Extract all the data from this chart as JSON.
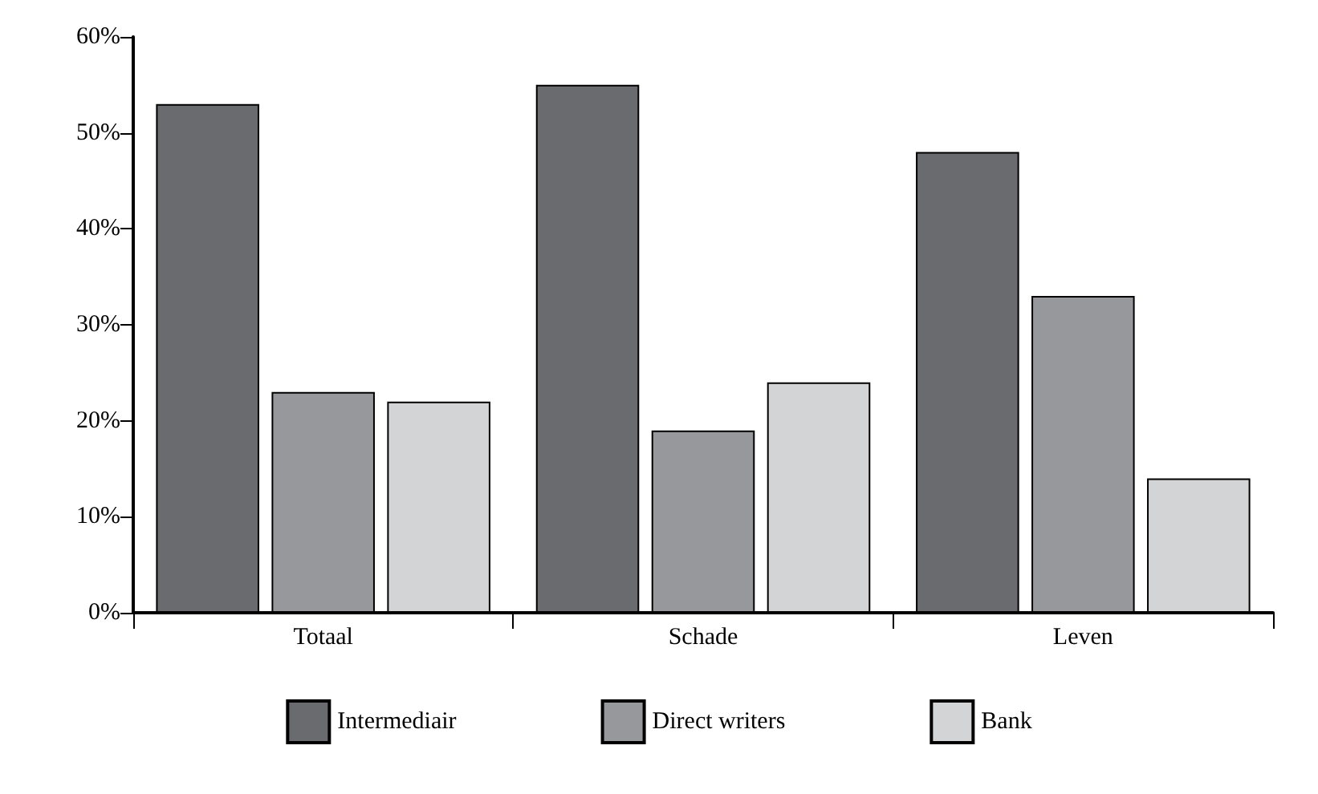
{
  "chart_data": {
    "type": "bar",
    "categories": [
      "Totaal",
      "Schade",
      "Leven"
    ],
    "series": [
      {
        "name": "Intermediair",
        "color": "#6a6b6f",
        "values": [
          53,
          55,
          48
        ]
      },
      {
        "name": "Direct writers",
        "color": "#97989c",
        "values": [
          23,
          19,
          33
        ]
      },
      {
        "name": "Bank",
        "color": "#d3d4d6",
        "values": [
          22,
          24,
          14
        ]
      }
    ],
    "ylim": [
      0,
      60
    ],
    "yticks": [
      {
        "value": 0,
        "label": "0%"
      },
      {
        "value": 10,
        "label": "10%"
      },
      {
        "value": 20,
        "label": "20%"
      },
      {
        "value": 30,
        "label": "30%"
      },
      {
        "value": 40,
        "label": "40%"
      },
      {
        "value": 50,
        "label": "50%"
      },
      {
        "value": 60,
        "label": "60%"
      }
    ],
    "grid": false,
    "legend": "bottom"
  }
}
